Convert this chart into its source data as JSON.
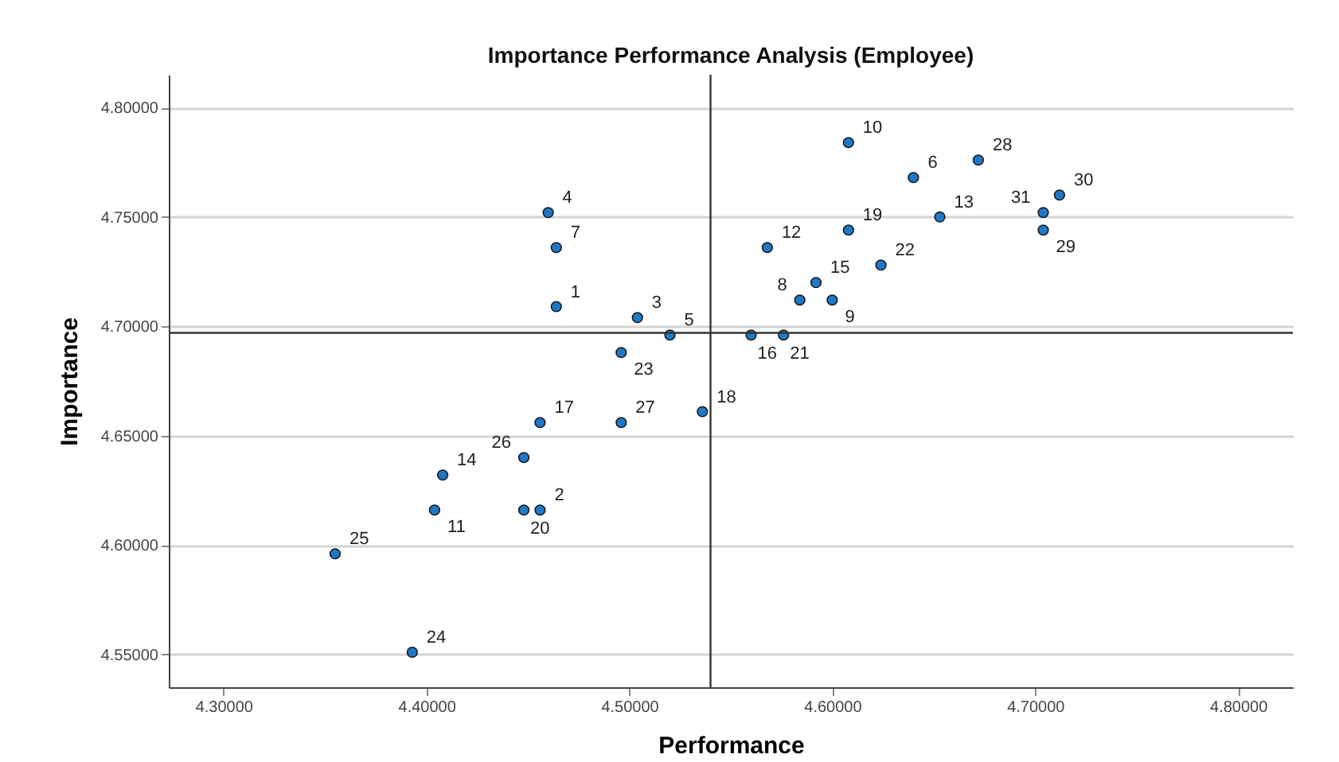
{
  "chart_data": {
    "type": "scatter",
    "title": "Importance Performance Analysis (Employee)",
    "xlabel": "Performance",
    "ylabel": "Importance",
    "x": [
      4.464,
      4.456,
      4.504,
      4.46,
      4.52,
      4.64,
      4.464,
      4.584,
      4.6,
      4.608,
      4.404,
      4.568,
      4.653,
      4.408,
      4.592,
      4.56,
      4.456,
      4.536,
      4.608,
      4.448,
      4.576,
      4.624,
      4.496,
      4.393,
      4.355,
      4.448,
      4.496,
      4.672,
      4.704,
      4.712,
      4.704
    ],
    "series": [
      {
        "color": "#1e78c8",
        "values": [
          4.709,
          4.616,
          4.704,
          4.752,
          4.696,
          4.768,
          4.736,
          4.712,
          4.712,
          4.784,
          4.616,
          4.736,
          4.75,
          4.632,
          4.72,
          4.696,
          4.656,
          4.661,
          4.744,
          4.616,
          4.696,
          4.728,
          4.688,
          4.551,
          4.596,
          4.64,
          4.656,
          4.776,
          4.744,
          4.76,
          4.752
        ]
      }
    ],
    "marker": "circle",
    "grid": "y",
    "xlim": [
      4.273,
      4.827
    ],
    "ylim": [
      4.535,
      4.815
    ],
    "xticks": [
      {
        "value": 4.3,
        "label": "4.30000"
      },
      {
        "value": 4.4,
        "label": "4.40000"
      },
      {
        "value": 4.5,
        "label": "4.50000"
      },
      {
        "value": 4.6,
        "label": "4.60000"
      },
      {
        "value": 4.7,
        "label": "4.70000"
      },
      {
        "value": 4.8,
        "label": "4.80000"
      }
    ],
    "yticks": [
      {
        "value": 4.55,
        "label": "4.55000"
      },
      {
        "value": 4.6,
        "label": "4.60000"
      },
      {
        "value": 4.65,
        "label": "4.65000"
      },
      {
        "value": 4.7,
        "label": "4.70000"
      },
      {
        "value": 4.75,
        "label": "4.75000"
      },
      {
        "value": 4.8,
        "label": "4.80000"
      }
    ],
    "ref_lines": [
      {
        "axis": "x",
        "value": 4.54,
        "color": "#333333"
      },
      {
        "axis": "y",
        "value": 4.697,
        "color": "#333333"
      }
    ],
    "annotations": [
      {
        "text": "1",
        "x": 4.464,
        "y": 4.709
      },
      {
        "text": "2",
        "x": 4.456,
        "y": 4.616
      },
      {
        "text": "3",
        "x": 4.504,
        "y": 4.704
      },
      {
        "text": "4",
        "x": 4.46,
        "y": 4.752
      },
      {
        "text": "5",
        "x": 4.52,
        "y": 4.696
      },
      {
        "text": "6",
        "x": 4.64,
        "y": 4.768
      },
      {
        "text": "7",
        "x": 4.464,
        "y": 4.736
      },
      {
        "text": "8",
        "x": 4.584,
        "y": 4.712
      },
      {
        "text": "9",
        "x": 4.6,
        "y": 4.712
      },
      {
        "text": "10",
        "x": 4.608,
        "y": 4.784
      },
      {
        "text": "11",
        "x": 4.404,
        "y": 4.616
      },
      {
        "text": "12",
        "x": 4.568,
        "y": 4.736
      },
      {
        "text": "13",
        "x": 4.653,
        "y": 4.75
      },
      {
        "text": "14",
        "x": 4.408,
        "y": 4.632
      },
      {
        "text": "15",
        "x": 4.592,
        "y": 4.72
      },
      {
        "text": "16",
        "x": 4.56,
        "y": 4.696
      },
      {
        "text": "17",
        "x": 4.456,
        "y": 4.656
      },
      {
        "text": "18",
        "x": 4.536,
        "y": 4.661
      },
      {
        "text": "19",
        "x": 4.608,
        "y": 4.744
      },
      {
        "text": "20",
        "x": 4.448,
        "y": 4.616
      },
      {
        "text": "21",
        "x": 4.576,
        "y": 4.696
      },
      {
        "text": "22",
        "x": 4.624,
        "y": 4.728
      },
      {
        "text": "23",
        "x": 4.496,
        "y": 4.688
      },
      {
        "text": "24",
        "x": 4.393,
        "y": 4.551
      },
      {
        "text": "25",
        "x": 4.355,
        "y": 4.596
      },
      {
        "text": "26",
        "x": 4.448,
        "y": 4.64
      },
      {
        "text": "27",
        "x": 4.496,
        "y": 4.656
      },
      {
        "text": "28",
        "x": 4.672,
        "y": 4.776
      },
      {
        "text": "29",
        "x": 4.704,
        "y": 4.744
      },
      {
        "text": "30",
        "x": 4.712,
        "y": 4.76
      },
      {
        "text": "31",
        "x": 4.704,
        "y": 4.752
      }
    ]
  }
}
